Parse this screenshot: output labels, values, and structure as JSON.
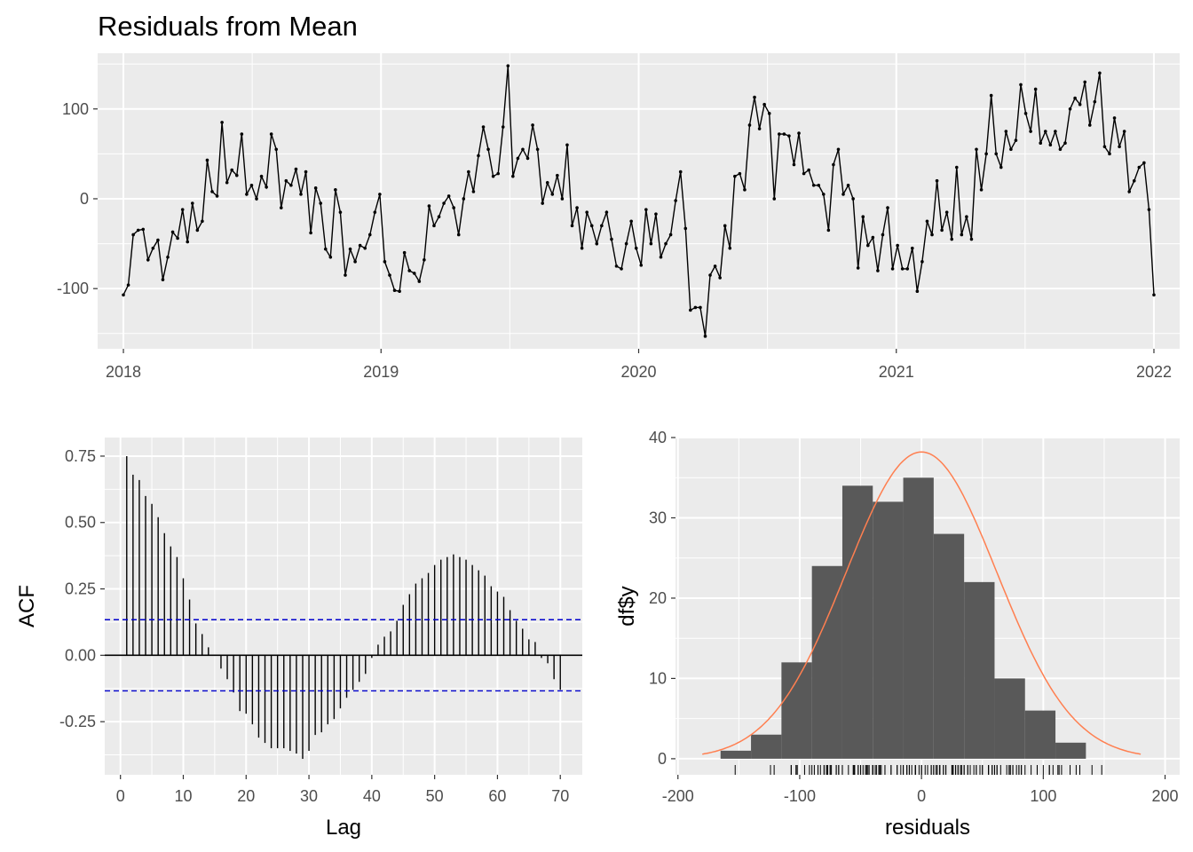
{
  "chart_data": [
    {
      "type": "line",
      "title": "Residuals from Mean",
      "xlabel": "",
      "ylabel": "",
      "x_ticks": [
        "2018",
        "2019",
        "2020",
        "2021",
        "2022"
      ],
      "y_ticks": [
        "-100",
        "0",
        "100"
      ],
      "xlim": [
        2017.9,
        2022.1
      ],
      "ylim": [
        -167,
        162
      ],
      "grid": true,
      "x_start": 2018.0,
      "x_end": 2022.0,
      "values": [
        -107,
        -96,
        -40,
        -35,
        -34,
        -68,
        -55,
        -46,
        -90,
        -65,
        -37,
        -44,
        -12,
        -48,
        -5,
        -35,
        -25,
        43,
        8,
        3,
        85,
        18,
        32,
        26,
        72,
        5,
        15,
        0,
        25,
        13,
        72,
        55,
        -10,
        20,
        15,
        33,
        5,
        30,
        -38,
        12,
        -5,
        -56,
        -65,
        10,
        -15,
        -85,
        -56,
        -70,
        -52,
        -55,
        -40,
        -15,
        5,
        -70,
        -85,
        -102,
        -103,
        -60,
        -80,
        -83,
        -92,
        -68,
        -8,
        -30,
        -20,
        -5,
        3,
        -10,
        -40,
        0,
        30,
        8,
        48,
        80,
        55,
        25,
        28,
        80,
        148,
        25,
        45,
        55,
        45,
        82,
        55,
        -5,
        18,
        5,
        26,
        0,
        60,
        -30,
        -10,
        -55,
        -15,
        -30,
        -50,
        -30,
        -15,
        -45,
        -75,
        -78,
        -50,
        -25,
        -55,
        -74,
        -12,
        -50,
        -17,
        -65,
        -50,
        -40,
        -2,
        30,
        -33,
        -124,
        -121,
        -121,
        -153,
        -85,
        -75,
        -88,
        -30,
        -55,
        25,
        28,
        10,
        82,
        113,
        78,
        105,
        95,
        0,
        72,
        72,
        70,
        38,
        73,
        28,
        32,
        15,
        15,
        5,
        -35,
        38,
        55,
        5,
        15,
        0,
        -77,
        -20,
        -52,
        -43,
        -80,
        -40,
        -10,
        -78,
        -52,
        -78,
        -78,
        -55,
        -103,
        -70,
        -25,
        -40,
        20,
        -35,
        -15,
        -45,
        35,
        -40,
        -20,
        -45,
        55,
        10,
        50,
        115,
        50,
        35,
        75,
        55,
        65,
        127,
        95,
        75,
        122,
        62,
        75,
        60,
        75,
        55,
        62,
        100,
        112,
        105,
        130,
        82,
        108,
        140,
        58,
        50,
        90,
        58,
        75,
        8,
        20,
        35,
        40,
        -12,
        -107
      ]
    },
    {
      "type": "bar",
      "title": "",
      "xlabel": "Lag",
      "ylabel": "ACF",
      "x_ticks": [
        "0",
        "10",
        "20",
        "30",
        "40",
        "50",
        "60",
        "70"
      ],
      "y_ticks": [
        "-0.25",
        "0.00",
        "0.25",
        "0.50",
        "0.75"
      ],
      "xlim": [
        -2.5,
        73.5
      ],
      "ylim": [
        -0.45,
        0.82
      ],
      "grid": true,
      "lags": [
        1,
        2,
        3,
        4,
        5,
        6,
        7,
        8,
        9,
        10,
        11,
        12,
        13,
        14,
        15,
        16,
        17,
        18,
        19,
        20,
        21,
        22,
        23,
        24,
        25,
        26,
        27,
        28,
        29,
        30,
        31,
        32,
        33,
        34,
        35,
        36,
        37,
        38,
        39,
        40,
        41,
        42,
        43,
        44,
        45,
        46,
        47,
        48,
        49,
        50,
        51,
        52,
        53,
        54,
        55,
        56,
        57,
        58,
        59,
        60,
        61,
        62,
        63,
        64,
        65,
        66,
        67,
        68,
        69,
        70
      ],
      "values": [
        0.75,
        0.68,
        0.66,
        0.6,
        0.57,
        0.52,
        0.46,
        0.41,
        0.37,
        0.29,
        0.21,
        0.12,
        0.08,
        0.03,
        0.0,
        -0.05,
        -0.09,
        -0.14,
        -0.21,
        -0.22,
        -0.26,
        -0.31,
        -0.33,
        -0.35,
        -0.35,
        -0.35,
        -0.36,
        -0.37,
        -0.39,
        -0.36,
        -0.3,
        -0.29,
        -0.26,
        -0.24,
        -0.2,
        -0.16,
        -0.13,
        -0.1,
        -0.07,
        -0.01,
        0.04,
        0.07,
        0.09,
        0.13,
        0.19,
        0.23,
        0.27,
        0.29,
        0.31,
        0.34,
        0.36,
        0.37,
        0.38,
        0.37,
        0.36,
        0.34,
        0.32,
        0.3,
        0.26,
        0.24,
        0.22,
        0.17,
        0.13,
        0.1,
        0.06,
        0.05,
        -0.01,
        -0.03,
        -0.09,
        -0.13
      ],
      "ci": 0.134,
      "colors": {
        "ci_line": "#0000cc"
      }
    },
    {
      "type": "bar",
      "title": "",
      "xlabel": "residuals",
      "ylabel": "df$y",
      "x_ticks": [
        "-200",
        "-100",
        "0",
        "100",
        "200"
      ],
      "y_ticks": [
        "0",
        "10",
        "20",
        "30",
        "40"
      ],
      "xlim": [
        -202,
        212
      ],
      "ylim": [
        -2,
        40
      ],
      "grid": true,
      "bin_edges": [
        -165,
        -140,
        -115,
        -90,
        -65,
        -40,
        -15,
        10,
        35,
        60,
        85,
        110,
        135,
        160
      ],
      "counts": [
        1,
        3,
        12,
        24,
        34,
        32,
        35,
        28,
        22,
        10,
        6,
        2,
        0
      ],
      "normal_curve": {
        "mean": 0,
        "sd": 62,
        "peak": 38.2,
        "x_range": [
          -180,
          180
        ]
      },
      "rug_values": [
        -153,
        -124,
        -121,
        -107,
        -107,
        -103,
        -103,
        -102,
        -96,
        -92,
        -90,
        -88,
        -85,
        -85,
        -83,
        -80,
        -80,
        -78,
        -78,
        -78,
        -77,
        -75,
        -75,
        -74,
        -70,
        -70,
        -68,
        -68,
        -65,
        -65,
        -60,
        -56,
        -56,
        -55,
        -55,
        -55,
        -52,
        -52,
        -50,
        -50,
        -48,
        -46,
        -45,
        -45,
        -44,
        -43,
        -40,
        -40,
        -40,
        -40,
        -38,
        -37,
        -35,
        -35,
        -35,
        -34,
        -33,
        -30,
        -30,
        -30,
        -30,
        -25,
        -25,
        -20,
        -20,
        -17,
        -15,
        -15,
        -15,
        -12,
        -12,
        -10,
        -10,
        -8,
        -5,
        -5,
        -5,
        -2,
        0,
        0,
        0,
        3,
        5,
        5,
        5,
        8,
        8,
        10,
        10,
        12,
        13,
        15,
        15,
        15,
        18,
        18,
        20,
        20,
        25,
        25,
        25,
        26,
        26,
        28,
        28,
        28,
        30,
        30,
        32,
        32,
        33,
        35,
        35,
        38,
        38,
        40,
        43,
        45,
        45,
        48,
        50,
        50,
        55,
        55,
        55,
        55,
        58,
        58,
        60,
        60,
        62,
        62,
        65,
        70,
        72,
        72,
        72,
        73,
        75,
        75,
        75,
        75,
        78,
        80,
        80,
        82,
        82,
        85,
        90,
        95,
        95,
        100,
        105,
        105,
        108,
        112,
        113,
        115,
        122,
        127,
        130,
        140,
        148
      ],
      "colors": {
        "bar": "#595959",
        "curve": "#ff7f50"
      }
    }
  ]
}
